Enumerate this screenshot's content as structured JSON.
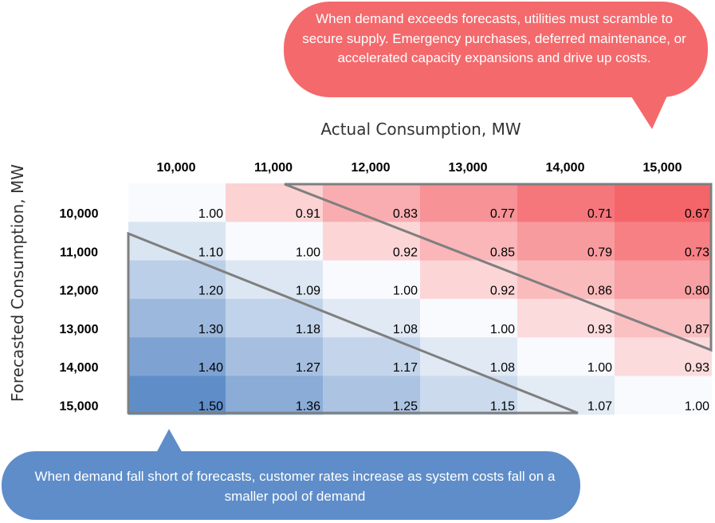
{
  "chart_data": {
    "type": "heatmap",
    "xlabel": "Actual Consumption, MW",
    "ylabel": "Forecasted Consumption, MW",
    "x_categories": [
      "10,000",
      "11,000",
      "12,000",
      "13,000",
      "14,000",
      "15,000"
    ],
    "y_categories": [
      "10,000",
      "11,000",
      "12,000",
      "13,000",
      "14,000",
      "15,000"
    ],
    "values": [
      [
        "1.00",
        "0.91",
        "0.83",
        "0.77",
        "0.71",
        "0.67"
      ],
      [
        "1.10",
        "1.00",
        "0.92",
        "0.85",
        "0.79",
        "0.73"
      ],
      [
        "1.20",
        "1.09",
        "1.00",
        "0.92",
        "0.86",
        "0.80"
      ],
      [
        "1.30",
        "1.18",
        "1.08",
        "1.00",
        "0.93",
        "0.87"
      ],
      [
        "1.40",
        "1.27",
        "1.17",
        "1.08",
        "1.00",
        "0.93"
      ],
      [
        "1.50",
        "1.36",
        "1.25",
        "1.15",
        "1.07",
        "1.00"
      ]
    ],
    "color_scale": {
      "low": "#f4656a",
      "mid": "#ffffff",
      "high": "#5f8dc8"
    },
    "annotations": {
      "upper": "When demand exceeds forecasts, utilities must scramble to secure supply.  Emergency purchases, deferred maintenance, or accelerated capacity expansions and drive up costs.",
      "lower": "When demand fall short of forecasts, customer rates increase as system costs fall on a smaller pool of demand"
    },
    "annotation_colors": {
      "upper": "#f4696c",
      "lower": "#5e8dc9"
    }
  }
}
